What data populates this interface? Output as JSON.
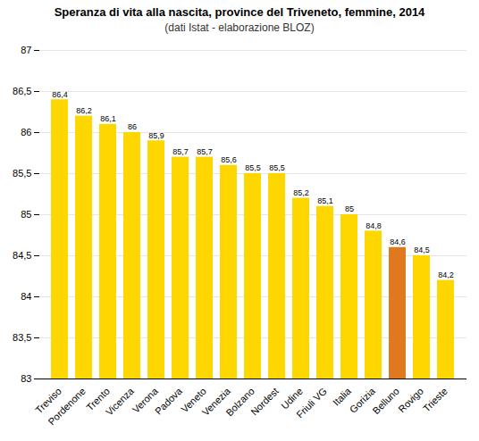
{
  "chart_data": {
    "type": "bar",
    "title": "Speranza di vita alla nascita, province del Triveneto, femmine, 2014",
    "subtitle": "(dati Istat - elaborazione BLOZ)",
    "categories": [
      "Treviso",
      "Pordenone",
      "Trento",
      "Vicenza",
      "Verona",
      "Padova",
      "Veneto",
      "Venezia",
      "Bolzano",
      "Nordest",
      "Udine",
      "Friuli VG",
      "Italia",
      "Gorizia",
      "Belluno",
      "Rovigo",
      "Trieste"
    ],
    "values": [
      86.4,
      86.2,
      86.1,
      86.0,
      85.9,
      85.7,
      85.7,
      85.6,
      85.5,
      85.5,
      85.2,
      85.1,
      85.0,
      84.8,
      84.6,
      84.5,
      84.2
    ],
    "value_labels": [
      "86,4",
      "86,2",
      "86,1",
      "86",
      "85,9",
      "85,7",
      "85,7",
      "85,6",
      "85,5",
      "85,5",
      "85,2",
      "85,1",
      "85",
      "84,8",
      "84,6",
      "84,5",
      "84,2"
    ],
    "colors": [
      "#FFD700",
      "#FFD700",
      "#FFD700",
      "#FFD700",
      "#FFD700",
      "#FFD700",
      "#FFD700",
      "#FFD700",
      "#FFD700",
      "#FFD700",
      "#FFD700",
      "#FFD700",
      "#FFD700",
      "#FFD700",
      "#E07820",
      "#FFD700",
      "#FFD700"
    ],
    "ylim": [
      83,
      87
    ],
    "yticks": [
      83,
      {
        "value": 83.5,
        "label": "83,5"
      },
      84,
      {
        "value": 84.5,
        "label": "84,5"
      },
      85,
      {
        "value": 85.5,
        "label": "85,5"
      },
      86,
      {
        "value": 86.5,
        "label": "86,5"
      },
      87
    ],
    "grid": true,
    "data_labels": true
  }
}
